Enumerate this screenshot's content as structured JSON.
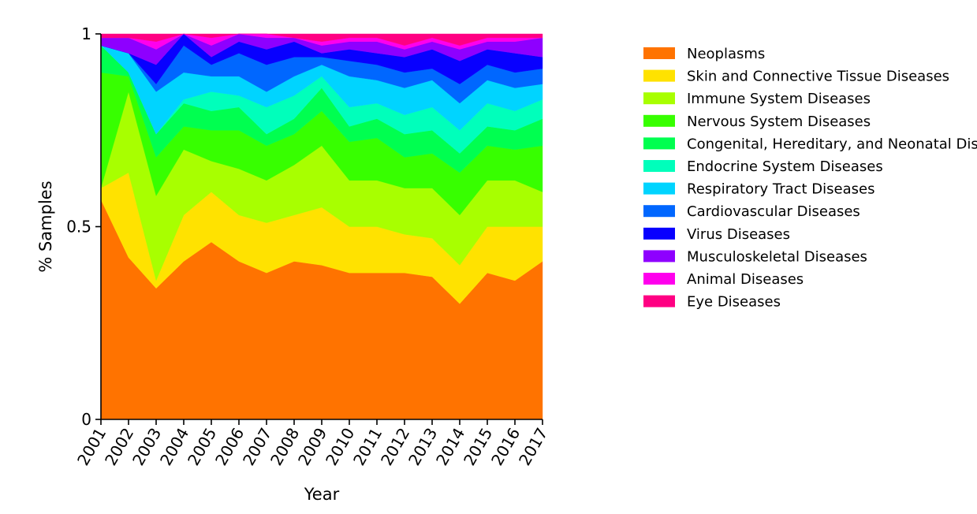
{
  "chart_data": {
    "type": "area",
    "stacked": true,
    "normalized": true,
    "xlabel": "Year",
    "ylabel": "% Samples",
    "ylim": [
      0,
      1
    ],
    "yticks": [
      0,
      0.5,
      1
    ],
    "ytick_labels": [
      "0",
      "0.5",
      "1"
    ],
    "legend_position": "right",
    "x": [
      2001,
      2002,
      2003,
      2004,
      2005,
      2006,
      2007,
      2008,
      2009,
      2010,
      2011,
      2012,
      2013,
      2014,
      2015,
      2016,
      2017
    ],
    "x_labels": [
      "2001",
      "2002",
      "2003",
      "2004",
      "2005",
      "2006",
      "2007",
      "2008",
      "2009",
      "2010",
      "2011",
      "2012",
      "2013",
      "2014",
      "2015",
      "2016",
      "2017"
    ],
    "series": [
      {
        "name": "Neoplasms",
        "color": "#ff7300",
        "values": [
          0.57,
          0.42,
          0.34,
          0.41,
          0.46,
          0.41,
          0.38,
          0.41,
          0.4,
          0.38,
          0.38,
          0.38,
          0.37,
          0.3,
          0.38,
          0.36,
          0.41
        ]
      },
      {
        "name": "Skin and Connective Tissue Diseases",
        "color": "#ffe200",
        "values": [
          0.03,
          0.22,
          0.02,
          0.12,
          0.13,
          0.12,
          0.13,
          0.12,
          0.15,
          0.12,
          0.12,
          0.1,
          0.1,
          0.1,
          0.12,
          0.14,
          0.09
        ]
      },
      {
        "name": "Immune System Diseases",
        "color": "#a8ff00",
        "values": [
          0.0,
          0.21,
          0.22,
          0.17,
          0.08,
          0.12,
          0.11,
          0.13,
          0.16,
          0.12,
          0.12,
          0.12,
          0.13,
          0.13,
          0.12,
          0.12,
          0.09
        ]
      },
      {
        "name": "Nervous System Diseases",
        "color": "#37ff00",
        "values": [
          0.3,
          0.04,
          0.1,
          0.06,
          0.08,
          0.1,
          0.09,
          0.08,
          0.09,
          0.1,
          0.11,
          0.08,
          0.09,
          0.11,
          0.09,
          0.08,
          0.12
        ]
      },
      {
        "name": "Congenital, Hereditary, and Neonatal Diseases and Abnormalities",
        "color": "#00ff50",
        "values": [
          0.07,
          0.01,
          0.06,
          0.06,
          0.05,
          0.06,
          0.03,
          0.04,
          0.06,
          0.04,
          0.05,
          0.06,
          0.06,
          0.05,
          0.05,
          0.05,
          0.07
        ]
      },
      {
        "name": "Endocrine System Diseases",
        "color": "#00ffbb",
        "values": [
          0.0,
          0.0,
          0.0,
          0.01,
          0.05,
          0.03,
          0.07,
          0.06,
          0.03,
          0.05,
          0.04,
          0.05,
          0.06,
          0.06,
          0.06,
          0.05,
          0.05
        ]
      },
      {
        "name": "Respiratory Tract Diseases",
        "color": "#00d4ff",
        "values": [
          0.0,
          0.05,
          0.11,
          0.07,
          0.04,
          0.05,
          0.04,
          0.05,
          0.03,
          0.08,
          0.06,
          0.07,
          0.07,
          0.07,
          0.06,
          0.06,
          0.04
        ]
      },
      {
        "name": "Cardiovascular Diseases",
        "color": "#0067ff",
        "values": [
          0.0,
          0.0,
          0.02,
          0.07,
          0.03,
          0.06,
          0.07,
          0.05,
          0.02,
          0.04,
          0.04,
          0.04,
          0.03,
          0.05,
          0.04,
          0.04,
          0.04
        ]
      },
      {
        "name": "Virus Diseases",
        "color": "#0800ff",
        "values": [
          0.0,
          0.0,
          0.05,
          0.03,
          0.02,
          0.03,
          0.04,
          0.04,
          0.01,
          0.03,
          0.03,
          0.04,
          0.05,
          0.06,
          0.04,
          0.05,
          0.03
        ]
      },
      {
        "name": "Musculoskeletal Diseases",
        "color": "#8e00ff",
        "values": [
          0.02,
          0.04,
          0.04,
          0.04,
          0.03,
          0.02,
          0.03,
          0.01,
          0.02,
          0.02,
          0.03,
          0.02,
          0.02,
          0.03,
          0.02,
          0.03,
          0.05
        ]
      },
      {
        "name": "Animal Diseases",
        "color": "#ff00ed",
        "values": [
          0.0,
          0.0,
          0.02,
          0.01,
          0.02,
          0.0,
          0.01,
          0.0,
          0.01,
          0.01,
          0.01,
          0.01,
          0.01,
          0.01,
          0.01,
          0.01,
          0.0
        ]
      },
      {
        "name": "Eye Diseases",
        "color": "#ff0083",
        "values": [
          0.01,
          0.01,
          0.02,
          0.01,
          0.01,
          0.0,
          0.0,
          0.01,
          0.02,
          0.01,
          0.01,
          0.03,
          0.01,
          0.03,
          0.01,
          0.01,
          0.01
        ]
      }
    ]
  }
}
